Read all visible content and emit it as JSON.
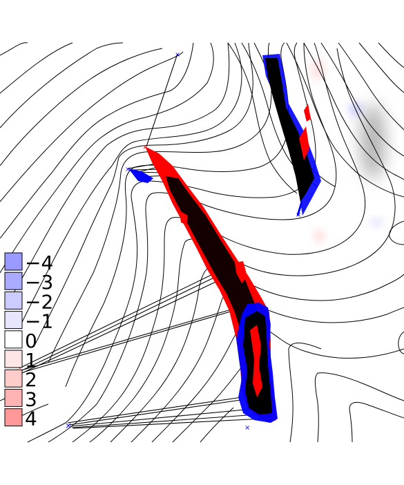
{
  "legend": {
    "entries": [
      {
        "label": "−4",
        "color": "#9999ff"
      },
      {
        "label": "−3",
        "color": "#aaaaff"
      },
      {
        "label": "−2",
        "color": "#ccccff"
      },
      {
        "label": "−1",
        "color": "#e6e6ff"
      },
      {
        "label": "0",
        "color": "#ffffff"
      },
      {
        "label": "1",
        "color": "#ffe6e6"
      },
      {
        "label": "2",
        "color": "#ffcccc"
      },
      {
        "label": "3",
        "color": "#ffb3b3"
      },
      {
        "label": "4",
        "color": "#ff9999"
      }
    ]
  },
  "colors": {
    "contour": "#000000",
    "marker_blue": "#0000ff",
    "marker_red": "#ff0000",
    "dense_core": "#000000"
  }
}
